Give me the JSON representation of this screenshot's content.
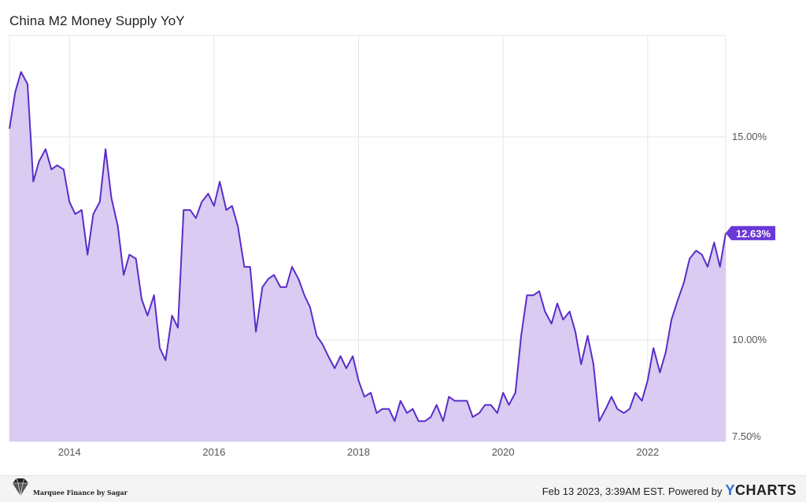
{
  "title": "China M2 Money Supply YoY",
  "footer": {
    "timestamp": "Feb 13 2023, 3:39AM EST.",
    "powered_by": "Powered by",
    "logo": "CHARTS",
    "logo_initial": "Y",
    "brand": "Marquee Finance by Sagar"
  },
  "colors": {
    "line": "#5a2dc8",
    "fill": "#d9cbf2",
    "badge": "#6a38d6",
    "grid": "#e6e6e6"
  },
  "chart_data": {
    "type": "area",
    "title": "China M2 Money Supply YoY",
    "x_ticks": [
      "2014",
      "2016",
      "2018",
      "2020",
      "2022"
    ],
    "x_tick_values": [
      2014,
      2016,
      2018,
      2020,
      2022
    ],
    "y_ticks": [
      "7.50%",
      "10.00%",
      "15.00%"
    ],
    "y_tick_values": [
      7.5,
      10,
      15
    ],
    "xlim": [
      2013.17,
      2023.08
    ],
    "ylim": [
      7.5,
      17.5
    ],
    "grid": true,
    "last_value_label": "12.63%",
    "series": [
      {
        "values": [
          [
            2013.17,
            15.2
          ],
          [
            2013.25,
            16.1
          ],
          [
            2013.33,
            16.6
          ],
          [
            2013.42,
            16.3
          ],
          [
            2013.5,
            13.9
          ],
          [
            2013.58,
            14.4
          ],
          [
            2013.67,
            14.7
          ],
          [
            2013.75,
            14.2
          ],
          [
            2013.83,
            14.3
          ],
          [
            2013.92,
            14.2
          ],
          [
            2014.0,
            13.4
          ],
          [
            2014.08,
            13.1
          ],
          [
            2014.17,
            13.2
          ],
          [
            2014.25,
            12.1
          ],
          [
            2014.33,
            13.1
          ],
          [
            2014.42,
            13.4
          ],
          [
            2014.5,
            14.7
          ],
          [
            2014.58,
            13.5
          ],
          [
            2014.67,
            12.8
          ],
          [
            2014.75,
            11.6
          ],
          [
            2014.83,
            12.1
          ],
          [
            2014.92,
            12.0
          ],
          [
            2015.0,
            11.0
          ],
          [
            2015.08,
            10.6
          ],
          [
            2015.17,
            11.1
          ],
          [
            2015.25,
            9.8
          ],
          [
            2015.33,
            9.5
          ],
          [
            2015.42,
            10.6
          ],
          [
            2015.5,
            10.3
          ],
          [
            2015.58,
            13.2
          ],
          [
            2015.67,
            13.2
          ],
          [
            2015.75,
            13.0
          ],
          [
            2015.83,
            13.4
          ],
          [
            2015.92,
            13.6
          ],
          [
            2016.0,
            13.3
          ],
          [
            2016.08,
            13.9
          ],
          [
            2016.17,
            13.2
          ],
          [
            2016.25,
            13.3
          ],
          [
            2016.33,
            12.8
          ],
          [
            2016.42,
            11.8
          ],
          [
            2016.5,
            11.8
          ],
          [
            2016.58,
            10.2
          ],
          [
            2016.67,
            11.3
          ],
          [
            2016.75,
            11.5
          ],
          [
            2016.83,
            11.6
          ],
          [
            2016.92,
            11.3
          ],
          [
            2017.0,
            11.3
          ],
          [
            2017.08,
            11.8
          ],
          [
            2017.17,
            11.5
          ],
          [
            2017.25,
            11.1
          ],
          [
            2017.33,
            10.8
          ],
          [
            2017.42,
            10.1
          ],
          [
            2017.5,
            9.9
          ],
          [
            2017.58,
            9.6
          ],
          [
            2017.67,
            9.3
          ],
          [
            2017.75,
            9.6
          ],
          [
            2017.83,
            9.3
          ],
          [
            2017.92,
            9.6
          ],
          [
            2018.0,
            9.0
          ],
          [
            2018.08,
            8.6
          ],
          [
            2018.17,
            8.7
          ],
          [
            2018.25,
            8.2
          ],
          [
            2018.33,
            8.3
          ],
          [
            2018.42,
            8.3
          ],
          [
            2018.5,
            8.0
          ],
          [
            2018.58,
            8.5
          ],
          [
            2018.67,
            8.2
          ],
          [
            2018.75,
            8.3
          ],
          [
            2018.83,
            8.0
          ],
          [
            2018.92,
            8.0
          ],
          [
            2019.0,
            8.1
          ],
          [
            2019.08,
            8.4
          ],
          [
            2019.17,
            8.0
          ],
          [
            2019.25,
            8.6
          ],
          [
            2019.33,
            8.5
          ],
          [
            2019.42,
            8.5
          ],
          [
            2019.5,
            8.5
          ],
          [
            2019.58,
            8.1
          ],
          [
            2019.67,
            8.2
          ],
          [
            2019.75,
            8.4
          ],
          [
            2019.83,
            8.4
          ],
          [
            2019.92,
            8.2
          ],
          [
            2020.0,
            8.7
          ],
          [
            2020.08,
            8.4
          ],
          [
            2020.17,
            8.7
          ],
          [
            2020.25,
            10.1
          ],
          [
            2020.33,
            11.1
          ],
          [
            2020.42,
            11.1
          ],
          [
            2020.5,
            11.2
          ],
          [
            2020.58,
            10.7
          ],
          [
            2020.67,
            10.4
          ],
          [
            2020.75,
            10.9
          ],
          [
            2020.83,
            10.5
          ],
          [
            2020.92,
            10.7
          ],
          [
            2021.0,
            10.2
          ],
          [
            2021.08,
            9.4
          ],
          [
            2021.17,
            10.1
          ],
          [
            2021.25,
            9.4
          ],
          [
            2021.33,
            8.0
          ],
          [
            2021.42,
            8.3
          ],
          [
            2021.5,
            8.6
          ],
          [
            2021.58,
            8.3
          ],
          [
            2021.67,
            8.2
          ],
          [
            2021.75,
            8.3
          ],
          [
            2021.83,
            8.7
          ],
          [
            2021.92,
            8.5
          ],
          [
            2022.0,
            9.0
          ],
          [
            2022.08,
            9.8
          ],
          [
            2022.17,
            9.2
          ],
          [
            2022.25,
            9.7
          ],
          [
            2022.33,
            10.5
          ],
          [
            2022.42,
            11.0
          ],
          [
            2022.5,
            11.4
          ],
          [
            2022.58,
            12.0
          ],
          [
            2022.67,
            12.2
          ],
          [
            2022.75,
            12.1
          ],
          [
            2022.83,
            11.8
          ],
          [
            2022.92,
            12.4
          ],
          [
            2023.0,
            11.8
          ],
          [
            2023.08,
            12.63
          ]
        ]
      }
    ]
  }
}
